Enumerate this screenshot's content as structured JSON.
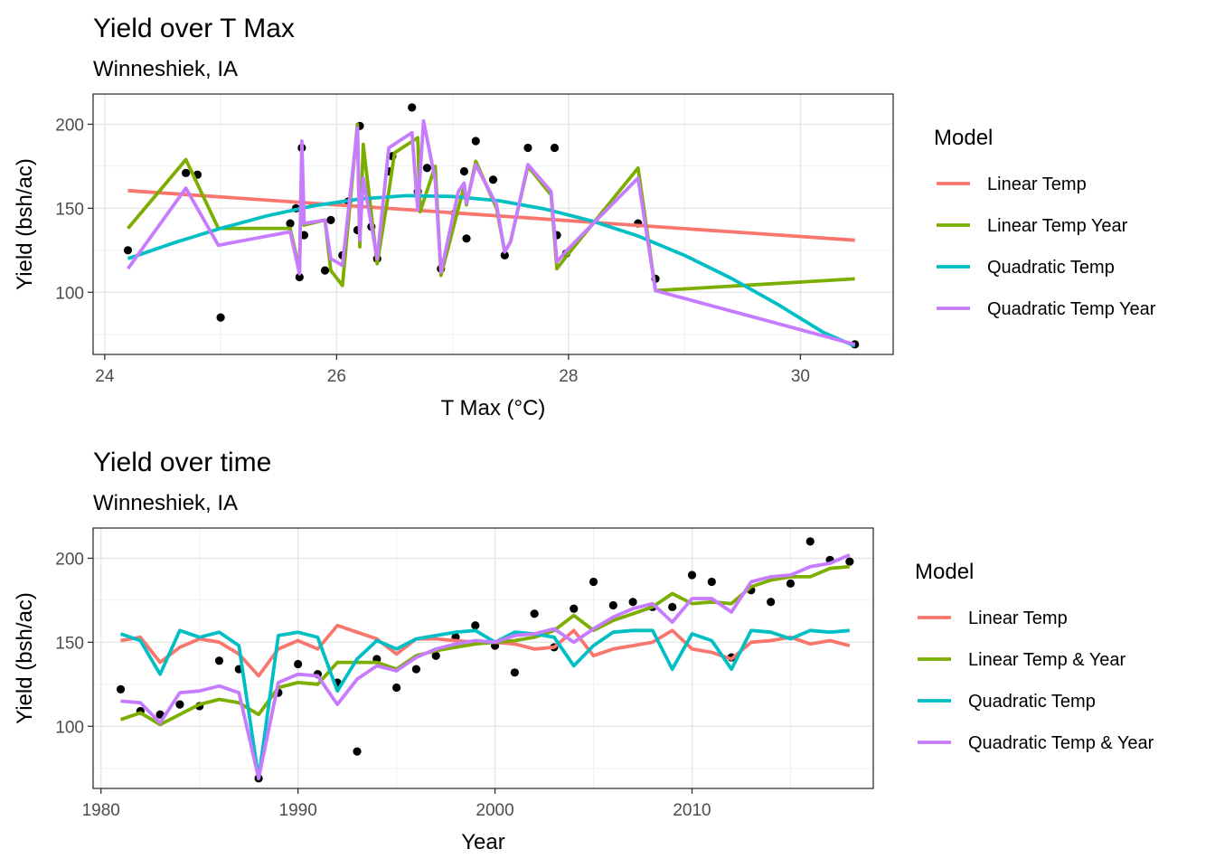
{
  "colors": {
    "Linear Temp": "#F8766D",
    "Linear Temp Year": "#7CAE00",
    "Quadratic Temp": "#00BFC4",
    "Quadratic Temp Year": "#C77CFF",
    "points": "#000000"
  },
  "chart_data": [
    {
      "type": "scatter",
      "title": "Yield over T Max",
      "subtitle": "Winneshiek, IA",
      "xlabel": "T Max (°C)",
      "ylabel": "Yield (bsh/ac)",
      "xlim": [
        23.9,
        30.8
      ],
      "ylim": [
        63,
        218
      ],
      "xticks": [
        24,
        26,
        28,
        30
      ],
      "yticks": [
        100,
        150,
        200
      ],
      "grid": true,
      "legend": {
        "title": "Model",
        "position": "right",
        "entries": [
          "Linear Temp",
          "Linear Temp Year",
          "Quadratic Temp",
          "Quadratic Temp Year"
        ]
      },
      "points": [
        [
          24.2,
          125
        ],
        [
          24.7,
          171
        ],
        [
          24.8,
          170
        ],
        [
          25.0,
          85
        ],
        [
          25.6,
          141
        ],
        [
          25.65,
          150
        ],
        [
          25.68,
          109
        ],
        [
          25.7,
          186
        ],
        [
          25.72,
          134
        ],
        [
          25.9,
          113
        ],
        [
          25.95,
          143
        ],
        [
          26.05,
          122
        ],
        [
          26.1,
          154
        ],
        [
          26.18,
          137
        ],
        [
          26.2,
          199
        ],
        [
          26.3,
          139
        ],
        [
          26.35,
          120
        ],
        [
          26.45,
          172
        ],
        [
          26.48,
          181
        ],
        [
          26.65,
          210
        ],
        [
          26.7,
          160
        ],
        [
          26.78,
          174
        ],
        [
          26.9,
          114
        ],
        [
          27.02,
          147
        ],
        [
          27.1,
          172
        ],
        [
          27.12,
          132
        ],
        [
          27.2,
          190
        ],
        [
          27.35,
          167
        ],
        [
          27.45,
          122
        ],
        [
          27.65,
          186
        ],
        [
          27.88,
          186
        ],
        [
          27.9,
          134
        ],
        [
          27.98,
          123
        ],
        [
          28.6,
          141
        ],
        [
          28.75,
          108
        ],
        [
          30.47,
          69
        ]
      ],
      "series": [
        {
          "name": "Linear Temp",
          "x": [
            24.2,
            30.47
          ],
          "y": [
            160.5,
            131
          ]
        },
        {
          "name": "Quadratic Temp",
          "x": [
            24.2,
            24.6,
            25.0,
            25.4,
            25.8,
            26.2,
            26.6,
            27.0,
            27.4,
            27.8,
            28.2,
            28.6,
            29.0,
            29.4,
            29.8,
            30.2,
            30.47
          ],
          "y": [
            120,
            129.5,
            138,
            145.5,
            151.5,
            155.5,
            157.5,
            157,
            154.5,
            149.5,
            142.5,
            133.5,
            122,
            108.5,
            93,
            76,
            68
          ]
        },
        {
          "name": "Linear Temp Year",
          "x": [
            24.2,
            24.7,
            24.98,
            25.6,
            25.68,
            25.7,
            25.72,
            25.9,
            25.95,
            26.05,
            26.18,
            26.2,
            26.23,
            26.35,
            26.45,
            26.5,
            26.7,
            26.72,
            26.85,
            26.9,
            27.05,
            27.1,
            27.12,
            27.2,
            27.38,
            27.45,
            27.5,
            27.65,
            27.85,
            27.9,
            28.0,
            28.6,
            28.75,
            30.47
          ],
          "y": [
            138,
            179,
            138,
            138,
            113,
            182,
            140,
            143,
            113,
            104,
            200,
            127,
            188,
            117,
            160,
            183,
            192,
            148,
            175,
            110,
            150,
            163,
            152,
            178,
            150,
            124,
            130,
            175,
            158,
            114,
            123,
            174,
            101,
            108
          ]
        },
        {
          "name": "Quadratic Temp Year",
          "x": [
            24.2,
            24.7,
            24.98,
            25.6,
            25.68,
            25.7,
            25.72,
            25.9,
            25.95,
            26.05,
            26.18,
            26.2,
            26.23,
            26.35,
            26.45,
            26.65,
            26.7,
            26.75,
            26.85,
            26.9,
            27.05,
            27.1,
            27.12,
            27.2,
            27.38,
            27.45,
            27.5,
            27.65,
            27.85,
            27.9,
            28.0,
            28.6,
            28.75,
            30.47
          ],
          "y": [
            114,
            162,
            128,
            136,
            111,
            190,
            141,
            143,
            120,
            116,
            198,
            131,
            168,
            120,
            186,
            195,
            149,
            202,
            167,
            112,
            160,
            165,
            153,
            176,
            152,
            124,
            130,
            176,
            160,
            118,
            126,
            168,
            101,
            69
          ]
        }
      ]
    },
    {
      "type": "scatter",
      "title": "Yield over time",
      "subtitle": "Winneshiek, IA",
      "xlabel": "Year",
      "ylabel": "Yield (bsh/ac)",
      "xlim": [
        1979.6,
        2019.2
      ],
      "ylim": [
        63,
        218
      ],
      "xticks": [
        1980,
        1990,
        2000,
        2010
      ],
      "yticks": [
        100,
        150,
        200
      ],
      "grid": true,
      "legend": {
        "title": "Model",
        "position": "right",
        "entries": [
          "Linear Temp",
          "Linear Temp & Year",
          "Quadratic Temp",
          "Quadratic Temp & Year"
        ]
      },
      "years": [
        1981,
        1982,
        1983,
        1984,
        1985,
        1986,
        1987,
        1988,
        1989,
        1990,
        1991,
        1992,
        1993,
        1994,
        1995,
        1996,
        1997,
        1998,
        1999,
        2000,
        2001,
        2002,
        2003,
        2004,
        2005,
        2006,
        2007,
        2008,
        2009,
        2010,
        2011,
        2012,
        2013,
        2014,
        2015,
        2016,
        2017,
        2018
      ],
      "points": [
        122,
        109,
        107,
        113,
        112,
        139,
        134,
        69,
        120,
        137,
        131,
        126,
        85,
        140,
        123,
        134,
        142,
        153,
        160,
        148,
        132,
        167,
        147,
        170,
        186,
        172,
        174,
        171,
        171,
        190,
        186,
        141,
        181,
        174,
        185,
        210,
        199,
        198
      ],
      "series": [
        {
          "name": "Linear Temp",
          "values": [
            151,
            153,
            138,
            147,
            152,
            150,
            143,
            130,
            146,
            151,
            146,
            160,
            156,
            152,
            143,
            152,
            152,
            151,
            150,
            150,
            149,
            146,
            147,
            157,
            142,
            146,
            148,
            150,
            157,
            146,
            144,
            140,
            150,
            151,
            153,
            149,
            151,
            148
          ]
        },
        {
          "name": "Linear Temp & Year",
          "values": [
            104,
            108,
            101,
            107,
            113,
            116,
            114,
            107,
            123,
            126,
            125,
            138,
            138,
            138,
            134,
            142,
            145,
            147,
            149,
            150,
            151,
            153,
            157,
            166,
            157,
            163,
            167,
            171,
            179,
            173,
            174,
            173,
            183,
            187,
            189,
            189,
            194,
            195
          ]
        },
        {
          "name": "Quadratic Temp",
          "values": [
            155,
            151,
            131,
            157,
            153,
            156,
            148,
            69,
            154,
            156,
            153,
            121,
            140,
            151,
            146,
            152,
            154,
            156,
            157,
            150,
            156,
            155,
            153,
            136,
            148,
            156,
            157,
            157,
            134,
            155,
            151,
            134,
            157,
            156,
            152,
            157,
            156,
            157
          ]
        },
        {
          "name": "Quadratic Temp & Year",
          "values": [
            115,
            114,
            102,
            120,
            121,
            124,
            120,
            69,
            126,
            131,
            130,
            113,
            128,
            136,
            133,
            141,
            146,
            149,
            151,
            150,
            154,
            155,
            158,
            150,
            158,
            165,
            170,
            173,
            162,
            176,
            176,
            168,
            186,
            189,
            190,
            195,
            197,
            202
          ]
        }
      ]
    }
  ]
}
